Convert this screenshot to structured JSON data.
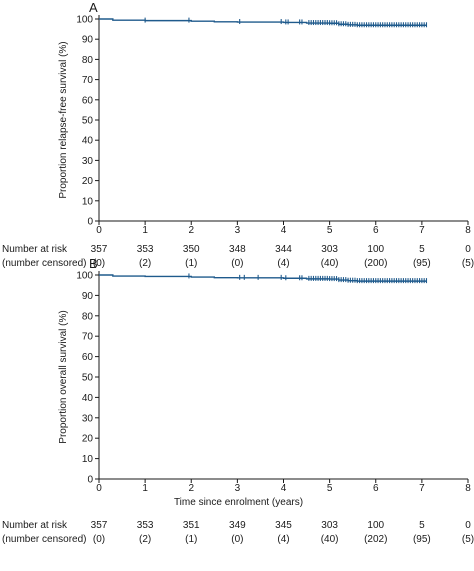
{
  "chart_data": [
    {
      "type": "line",
      "panel": "A",
      "ylabel": "Proportion relapse-free survival (%)",
      "xlabel": "",
      "xlim": [
        0,
        8
      ],
      "ylim": [
        0,
        100
      ],
      "x_ticks": [
        "0",
        "1",
        "2",
        "3",
        "4",
        "5",
        "6",
        "7",
        "8"
      ],
      "y_ticks": [
        "0",
        "10",
        "20",
        "30",
        "40",
        "50",
        "60",
        "70",
        "80",
        "90",
        "100"
      ],
      "color": "#1f5a8c",
      "curve": {
        "x": [
          0,
          0.3,
          1.0,
          2.0,
          2.5,
          3.0,
          4.0,
          4.5,
          5.0,
          5.2,
          5.4,
          5.6,
          7.1
        ],
        "y": [
          100,
          99.4,
          99.2,
          98.9,
          98.6,
          98.5,
          98.3,
          98.0,
          97.9,
          97.4,
          97.1,
          96.9,
          96.9
        ]
      },
      "censor_marks": [
        1.0,
        1.95,
        3.05,
        3.95,
        4.05,
        4.1,
        4.35,
        4.4,
        4.55,
        4.6,
        4.65,
        4.7,
        4.75,
        4.8,
        4.85,
        4.9,
        4.95,
        5.0,
        5.05,
        5.1,
        5.15,
        5.2,
        5.25,
        5.3,
        5.35,
        5.4,
        5.45,
        5.5,
        5.55,
        5.6,
        5.65,
        5.7,
        5.75,
        5.8,
        5.85,
        5.9,
        5.95,
        6.0,
        6.05,
        6.1,
        6.15,
        6.2,
        6.25,
        6.3,
        6.35,
        6.4,
        6.45,
        6.5,
        6.55,
        6.6,
        6.65,
        6.7,
        6.75,
        6.8,
        6.85,
        6.9,
        6.95,
        7.0,
        7.05,
        7.1
      ],
      "risk_table": {
        "row1_label": "Number at risk",
        "row2_label": "(number censored)",
        "at_risk": [
          "357",
          "353",
          "350",
          "348",
          "344",
          "303",
          "100",
          "5",
          "0"
        ],
        "censored": [
          "(0)",
          "(2)",
          "(1)",
          "(0)",
          "(4)",
          "(40)",
          "(200)",
          "(95)",
          "(5)"
        ]
      }
    },
    {
      "type": "line",
      "panel": "B",
      "ylabel": "Proportion overall survival (%)",
      "xlabel": "Time since enrolment (years)",
      "xlim": [
        0,
        8
      ],
      "ylim": [
        0,
        100
      ],
      "x_ticks": [
        "0",
        "1",
        "2",
        "3",
        "4",
        "5",
        "6",
        "7",
        "8"
      ],
      "y_ticks": [
        "0",
        "10",
        "20",
        "30",
        "40",
        "50",
        "60",
        "70",
        "80",
        "90",
        "100"
      ],
      "color": "#1f5a8c",
      "curve": {
        "x": [
          0,
          0.3,
          1.0,
          2.0,
          2.5,
          3.0,
          4.0,
          4.5,
          5.0,
          5.2,
          5.4,
          5.6,
          7.1
        ],
        "y": [
          100,
          99.5,
          99.3,
          99.0,
          98.7,
          98.6,
          98.4,
          98.1,
          98.0,
          97.5,
          97.2,
          97.0,
          97.0
        ]
      },
      "censor_marks": [
        1.95,
        3.05,
        3.15,
        3.45,
        3.95,
        4.05,
        4.35,
        4.4,
        4.55,
        4.6,
        4.65,
        4.7,
        4.75,
        4.8,
        4.85,
        4.9,
        4.95,
        5.0,
        5.05,
        5.1,
        5.15,
        5.2,
        5.25,
        5.3,
        5.35,
        5.4,
        5.45,
        5.5,
        5.55,
        5.6,
        5.65,
        5.7,
        5.75,
        5.8,
        5.85,
        5.9,
        5.95,
        6.0,
        6.05,
        6.1,
        6.15,
        6.2,
        6.25,
        6.3,
        6.35,
        6.4,
        6.45,
        6.5,
        6.55,
        6.6,
        6.65,
        6.7,
        6.75,
        6.8,
        6.85,
        6.9,
        6.95,
        7.0,
        7.05,
        7.1
      ],
      "risk_table": {
        "row1_label": "Number at risk",
        "row2_label": "(number censored)",
        "at_risk": [
          "357",
          "353",
          "351",
          "349",
          "345",
          "303",
          "100",
          "5",
          "0"
        ],
        "censored": [
          "(0)",
          "(2)",
          "(1)",
          "(0)",
          "(4)",
          "(40)",
          "(202)",
          "(95)",
          "(5)"
        ]
      }
    }
  ]
}
